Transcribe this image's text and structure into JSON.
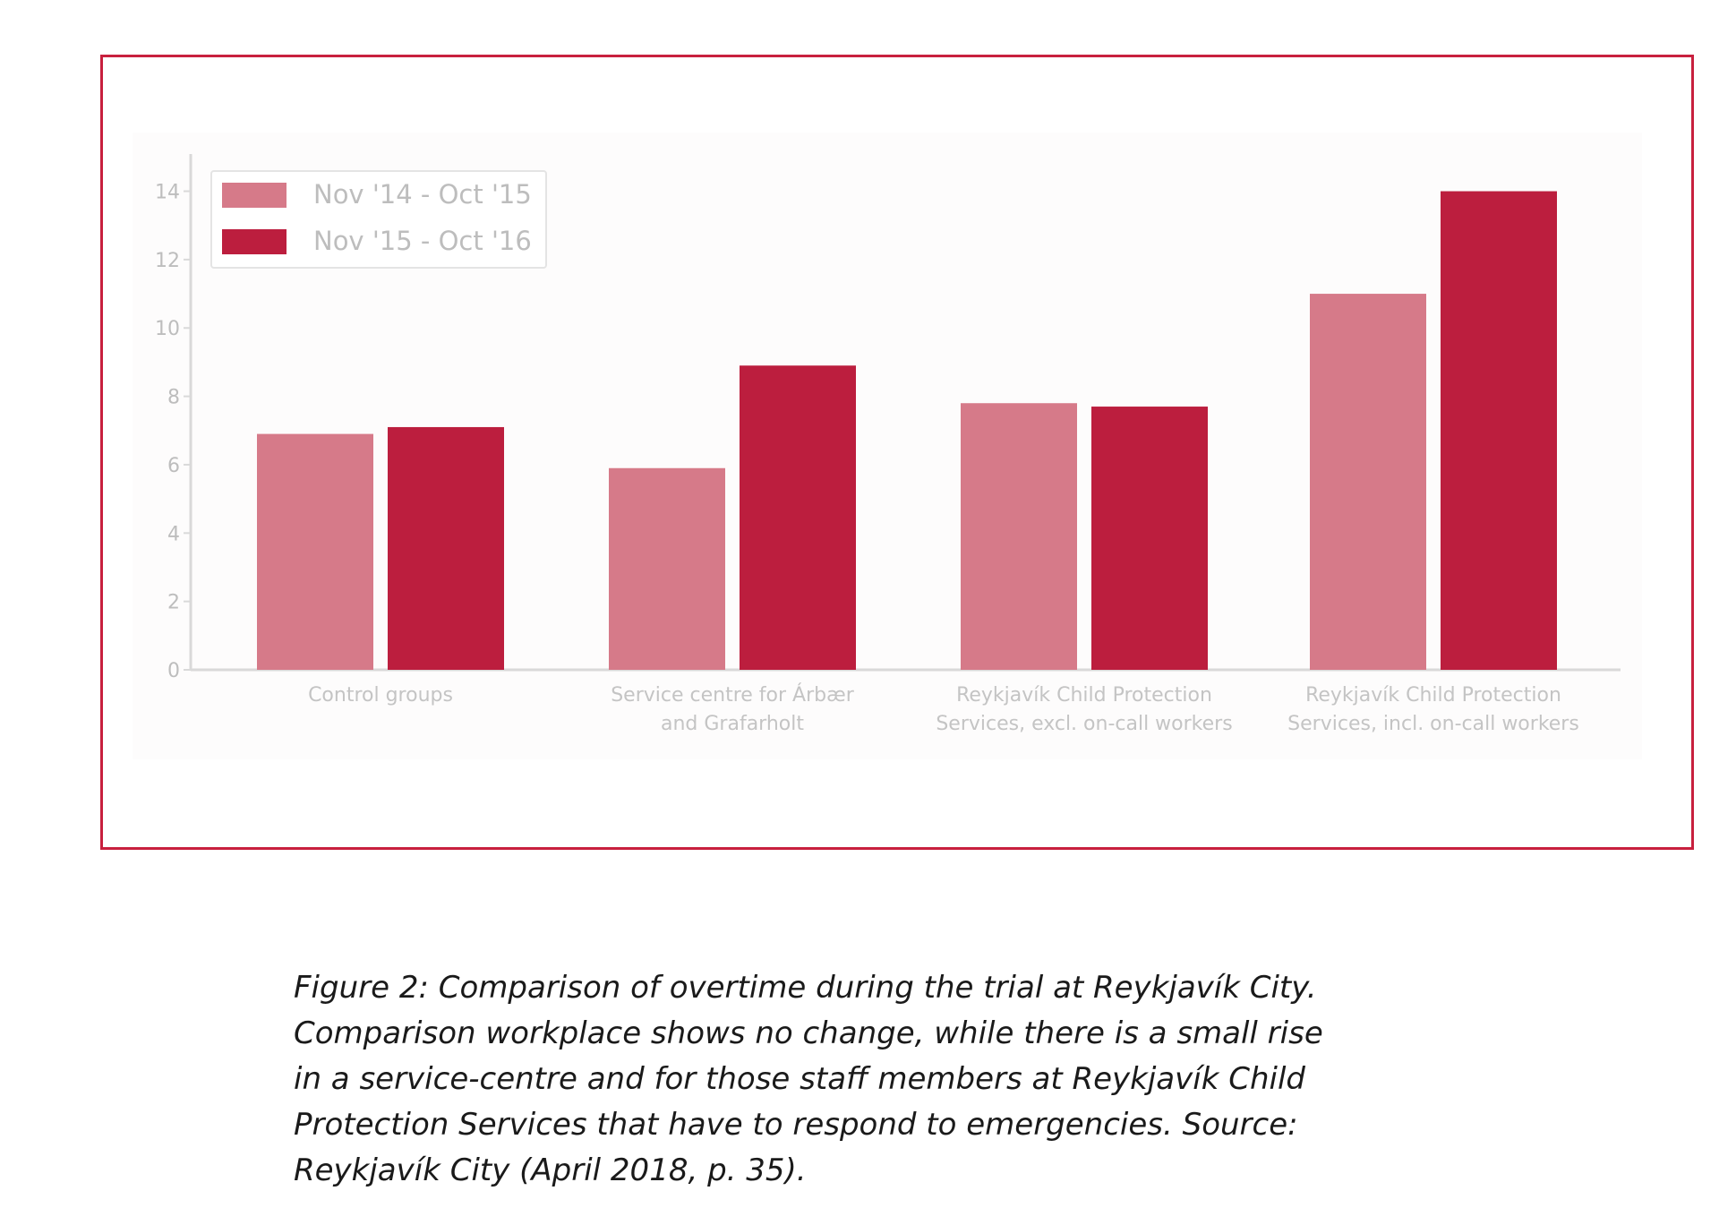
{
  "chart_data": {
    "type": "bar",
    "categories": [
      [
        "Control groups"
      ],
      [
        "Service centre for Árbær",
        "and Grafarholt"
      ],
      [
        "Reykjavík Child Protection",
        "Services, excl. on-call workers"
      ],
      [
        "Reykjavík Child Protection",
        "Services, incl. on-call workers"
      ]
    ],
    "series": [
      {
        "name": "Nov '14 - Oct '15",
        "color": "#d67a89",
        "values": [
          6.9,
          5.9,
          7.8,
          11.0
        ]
      },
      {
        "name": "Nov '15 - Oct '16",
        "color": "#bc1e3e",
        "values": [
          7.1,
          8.9,
          7.7,
          14.0
        ]
      }
    ],
    "yticks": [
      0,
      2,
      4,
      6,
      8,
      10,
      12,
      14
    ],
    "ylim": [
      0,
      14.8
    ],
    "legend_position": "top-left",
    "grid": false,
    "title": "",
    "xlabel": "",
    "ylabel": ""
  },
  "caption": {
    "lines": [
      "Figure 2: Comparison of overtime during the trial at Reykjavík City.",
      "Comparison workplace shows no change, while there is a small rise",
      "in a service-centre and for those staff members at Reykjavík Child",
      "Protection Services that have to respond to emergencies. Source:",
      "Reykjavík City (April 2018, p. 35)."
    ]
  }
}
